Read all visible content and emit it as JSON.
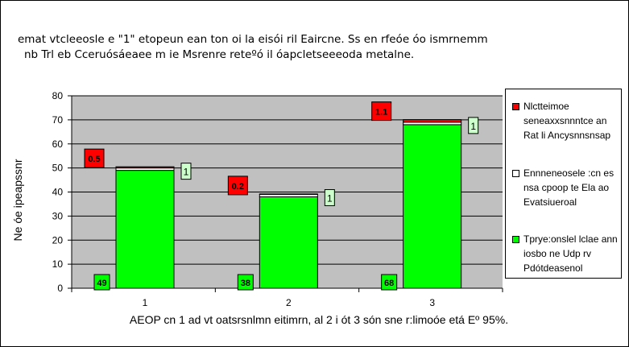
{
  "title_lines": [
    "emat vtcleeosle e \"1\" etopeun ean ton oi la eisói ril Eaircne. Ss en rfeóe óo ismrnemm",
    "nb Trl eb Cceruósáeaee m ie Msrenre reteºó il óapcletseeeoda metalne."
  ],
  "colors": {
    "red": "#ff0000",
    "white_series": "#ffffff",
    "light_green_label": "#ccffcc",
    "green": "#00ff00",
    "plot_bg": "#c0c0c0"
  },
  "chart_data": {
    "type": "bar",
    "stacked": true,
    "categories": [
      "1",
      "2",
      "3"
    ],
    "series": [
      {
        "name": "Tprye:onslel lclae ann iosbo ne Udp rv Pdótdeasenol",
        "values": [
          49,
          38,
          68
        ],
        "color": "#00ff00",
        "labels": [
          "49",
          "38",
          "68"
        ]
      },
      {
        "name": "Ennneneosele :cn es nsa cpoop te Ela ao Evatsiueroal",
        "values": [
          1,
          1,
          1
        ],
        "color": "#ffffff",
        "labels": [
          "1",
          "1",
          "1"
        ]
      },
      {
        "name": "Nlctteimoe seneaxxsnnntce an Rat li Ancysnnsnsap",
        "values": [
          0.5,
          0.2,
          1.1
        ],
        "color": "#ff0000",
        "labels": [
          "0.5",
          "0.2",
          "1.1"
        ]
      }
    ],
    "ylim": [
      0,
      80
    ],
    "yticks": [
      "0",
      "10",
      "20",
      "30",
      "40",
      "50",
      "60",
      "70",
      "80"
    ],
    "ylabel": "Ne óe ipeapssnr",
    "xlabel": "AEOP cn 1 ad vt oatsrsnlmn eitimrn, al 2 i ót 3 són sne r:limoóe etá Eº 95%.",
    "grid": true,
    "legend_position": "right"
  }
}
